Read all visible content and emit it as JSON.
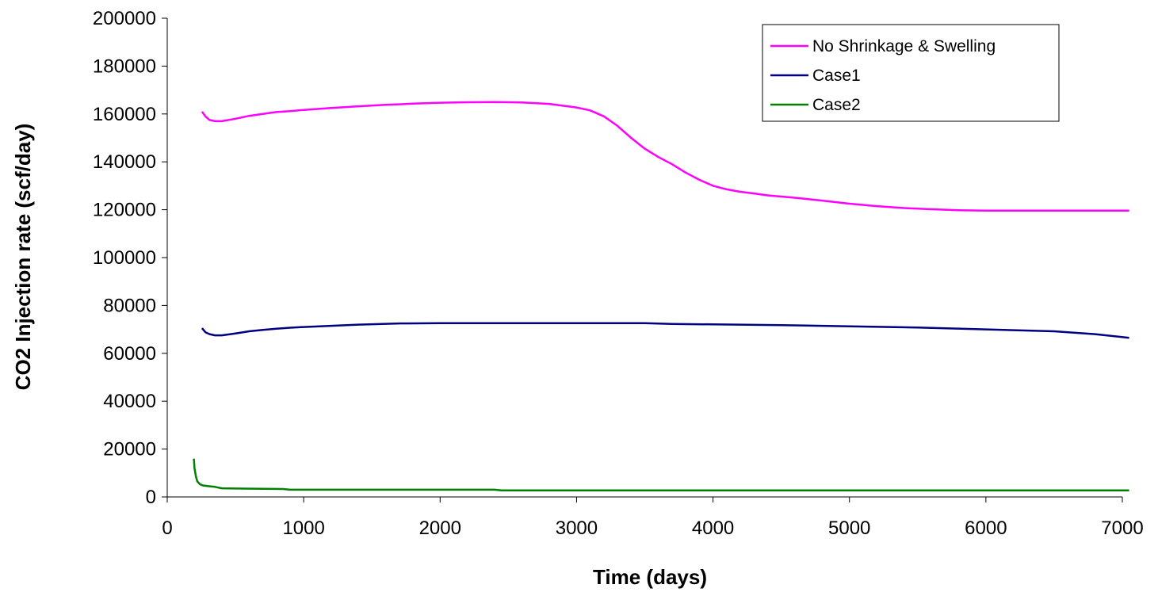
{
  "chart_data": {
    "type": "line",
    "title": "",
    "xlabel": "Time (days)",
    "ylabel": "CO2 Injection rate (scf/day)",
    "xlim": [
      0,
      7000
    ],
    "ylim": [
      0,
      200000
    ],
    "xticks": [
      "0",
      "1000",
      "2000",
      "3000",
      "4000",
      "5000",
      "6000",
      "7000"
    ],
    "yticks": [
      "0",
      "20000",
      "40000",
      "60000",
      "80000",
      "100000",
      "120000",
      "140000",
      "160000",
      "180000",
      "200000"
    ],
    "grid": false,
    "legend_position": "top-right",
    "series": [
      {
        "name": "No Shrinkage & Swelling",
        "color": "#FF00FF",
        "x": [
          255,
          280,
          310,
          350,
          400,
          500,
          600,
          700,
          800,
          900,
          1000,
          1200,
          1400,
          1600,
          1800,
          2000,
          2200,
          2400,
          2600,
          2800,
          3000,
          3100,
          3200,
          3300,
          3400,
          3500,
          3600,
          3700,
          3800,
          3900,
          4000,
          4100,
          4200,
          4300,
          4400,
          4600,
          4800,
          5000,
          5200,
          5400,
          5600,
          5800,
          6000,
          6500,
          7050
        ],
        "y": [
          161000,
          159000,
          157500,
          157000,
          157000,
          158000,
          159200,
          160000,
          160800,
          161200,
          161700,
          162500,
          163200,
          163800,
          164300,
          164700,
          164900,
          165000,
          164800,
          164200,
          162700,
          161500,
          159000,
          155000,
          150000,
          145500,
          142000,
          139000,
          135500,
          132500,
          130000,
          128500,
          127500,
          126800,
          126000,
          125000,
          123800,
          122500,
          121500,
          120700,
          120200,
          119800,
          119600,
          119600,
          119600
        ]
      },
      {
        "name": "Case1",
        "color": "#000080",
        "x": [
          255,
          280,
          310,
          350,
          400,
          500,
          600,
          700,
          800,
          900,
          1000,
          1200,
          1400,
          1700,
          2000,
          2500,
          3000,
          3500,
          3700,
          4000,
          4500,
          5000,
          5500,
          6000,
          6500,
          6800,
          7050
        ],
        "y": [
          70500,
          68800,
          68000,
          67500,
          67500,
          68300,
          69200,
          69800,
          70300,
          70700,
          71000,
          71500,
          72000,
          72500,
          72600,
          72600,
          72600,
          72600,
          72300,
          72100,
          71800,
          71300,
          70800,
          70000,
          69200,
          68000,
          66500
        ]
      },
      {
        "name": "Case2",
        "color": "#008000",
        "x": [
          195,
          200,
          210,
          220,
          240,
          260,
          300,
          350,
          400,
          500,
          700,
          850,
          900,
          1500,
          2400,
          2450,
          3000,
          4000,
          5000,
          6000,
          7050
        ],
        "y": [
          16000,
          12000,
          8500,
          6500,
          5300,
          4800,
          4500,
          4200,
          3600,
          3500,
          3400,
          3300,
          3000,
          3000,
          3000,
          2700,
          2700,
          2700,
          2700,
          2700,
          2700
        ]
      }
    ]
  }
}
